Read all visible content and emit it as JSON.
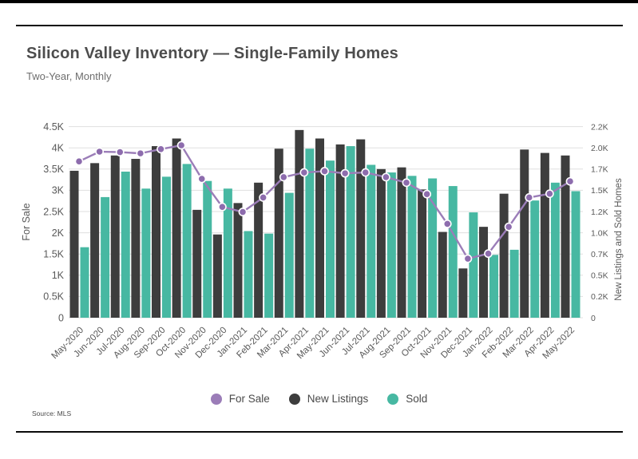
{
  "header": {
    "title": "Silicon Valley Inventory — Single-Family Homes",
    "subtitle": "Two-Year, Monthly"
  },
  "source_note": "Source:  MLS",
  "colors": {
    "for_sale_purple": "#9b7db8",
    "marker_purple": "#8d6cad",
    "new_listings_dark": "#3d3d3d",
    "sold_teal": "#47b8a2",
    "gridline": "#dfdfdf",
    "axis_text": "#595959"
  },
  "legend": {
    "items": [
      {
        "label": "For Sale",
        "color": "#9b7db8"
      },
      {
        "label": "New Listings",
        "color": "#3d3d3d"
      },
      {
        "label": "Sold",
        "color": "#47b8a2"
      }
    ]
  },
  "chart_data": {
    "type": "combo-bar-line",
    "title": "Silicon Valley Inventory — Single-Family Homes",
    "subtitle": "Two-Year, Monthly",
    "grid": true,
    "legend_position": "bottom",
    "categories": [
      "May-2020",
      "Jun-2020",
      "Jul-2020",
      "Aug-2020",
      "Sep-2020",
      "Oct-2020",
      "Nov-2020",
      "Dec-2020",
      "Jan-2021",
      "Feb-2021",
      "Mar-2021",
      "Apr-2021",
      "May-2021",
      "Jun-2021",
      "Jul-2021",
      "Aug-2021",
      "Sep-2021",
      "Oct-2021",
      "Nov-2021",
      "Dec-2021",
      "Jan-2022",
      "Feb-2022",
      "Mar-2022",
      "Apr-2022",
      "May-2022"
    ],
    "series": [
      {
        "name": "For Sale",
        "type": "line",
        "axis": "left",
        "color": "#9b7db8",
        "values": [
          3680,
          3910,
          3900,
          3870,
          3970,
          4060,
          3270,
          2610,
          2490,
          2830,
          3310,
          3420,
          3450,
          3400,
          3420,
          3310,
          3180,
          2910,
          2210,
          1390,
          1510,
          2140,
          2830,
          2920,
          3210
        ]
      },
      {
        "name": "New Listings",
        "type": "bar",
        "axis": "right",
        "color": "#3d3d3d",
        "values": [
          1730,
          1820,
          1910,
          1870,
          2020,
          2110,
          1270,
          980,
          1350,
          1590,
          1990,
          2210,
          2110,
          2040,
          2100,
          1750,
          1770,
          1510,
          1010,
          580,
          1070,
          1460,
          1980,
          1940,
          1910
        ]
      },
      {
        "name": "Sold",
        "type": "bar",
        "axis": "right",
        "color": "#47b8a2",
        "values": [
          830,
          1420,
          1720,
          1520,
          1660,
          1810,
          1610,
          1520,
          1020,
          990,
          1470,
          1990,
          1850,
          2020,
          1800,
          1710,
          1670,
          1640,
          1550,
          1240,
          740,
          800,
          1380,
          1590,
          1490
        ]
      }
    ],
    "left_axis": {
      "label": "For Sale",
      "min": 0,
      "max": 4500,
      "step": 500,
      "tick_labels": [
        "0",
        "0.5K",
        "1K",
        "1.5K",
        "2K",
        "2.5K",
        "3K",
        "3.5K",
        "4K",
        "4.5K"
      ]
    },
    "right_axis": {
      "label": "New Listings and Sold Homes",
      "min": 0,
      "max": 2250,
      "step": 250,
      "tick_labels": [
        "0",
        "0.2K",
        "0.5K",
        "0.7K",
        "1.0K",
        "1.2K",
        "1.5K",
        "1.7K",
        "2.0K",
        "2.2K"
      ]
    }
  }
}
